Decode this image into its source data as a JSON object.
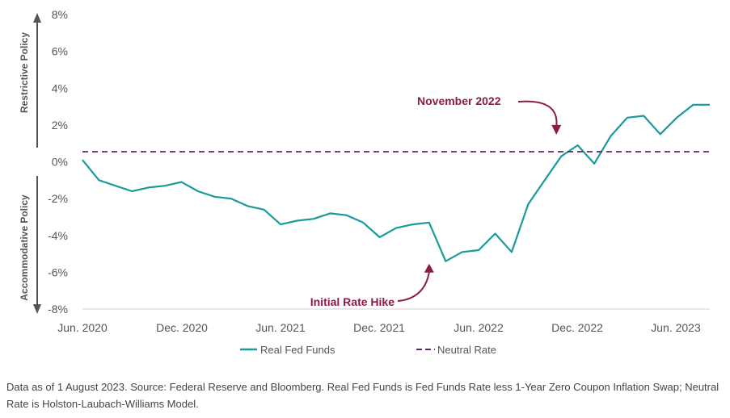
{
  "chart_data": {
    "type": "line",
    "x_ticks": [
      "Jun. 2020",
      "Dec. 2020",
      "Jun. 2021",
      "Dec. 2021",
      "Jun. 2022",
      "Dec. 2022",
      "Jun. 2023"
    ],
    "y_ticks": [
      "8%",
      "6%",
      "4%",
      "2%",
      "0%",
      "-2%",
      "-4%",
      "-6%",
      "-8%"
    ],
    "ylim": [
      -8,
      8
    ],
    "xlim": [
      "2020-06",
      "2023-08"
    ],
    "grid": false,
    "legend_position": "bottom",
    "side_labels": {
      "upper": "Restrictive Policy",
      "lower": "Accommodative Policy"
    },
    "annotations": [
      {
        "text": "November 2022",
        "x": "2022-11",
        "y": 1.3
      },
      {
        "text": "Initial Rate Hike",
        "x": "2022-03",
        "y": -5.4
      }
    ],
    "series": [
      {
        "name": "Real Fed Funds",
        "style": "solid",
        "color": "#1a9a9a",
        "x": [
          "2020-06",
          "2020-07",
          "2020-08",
          "2020-09",
          "2020-10",
          "2020-11",
          "2020-12",
          "2021-01",
          "2021-02",
          "2021-03",
          "2021-04",
          "2021-05",
          "2021-06",
          "2021-07",
          "2021-08",
          "2021-09",
          "2021-10",
          "2021-11",
          "2021-12",
          "2022-01",
          "2022-02",
          "2022-03",
          "2022-04",
          "2022-05",
          "2022-06",
          "2022-07",
          "2022-08",
          "2022-09",
          "2022-10",
          "2022-11",
          "2022-12",
          "2023-01",
          "2023-02",
          "2023-03",
          "2023-04",
          "2023-05",
          "2023-06",
          "2023-07",
          "2023-08"
        ],
        "values": [
          0.1,
          -1.0,
          -1.3,
          -1.6,
          -1.4,
          -1.3,
          -1.1,
          -1.6,
          -1.9,
          -2.0,
          -2.4,
          -2.6,
          -3.4,
          -3.2,
          -3.1,
          -2.8,
          -2.9,
          -3.3,
          -4.1,
          -3.6,
          -3.4,
          -3.3,
          -5.4,
          -4.9,
          -4.8,
          -3.9,
          -4.9,
          -2.3,
          -1.0,
          0.3,
          0.9,
          -0.1,
          1.4,
          2.4,
          2.5,
          1.5,
          2.4,
          3.1,
          3.1
        ]
      },
      {
        "name": "Neutral Rate",
        "style": "dashed",
        "color": "#5a2a66",
        "x": [
          "2020-06",
          "2023-08"
        ],
        "values": [
          0.55,
          0.55
        ]
      }
    ]
  },
  "footnote": "Data as of 1 August 2023. Source: Federal Reserve and Bloomberg. Real Fed Funds is Fed Funds Rate less 1-Year Zero Coupon Inflation Swap; Neutral Rate is Holston-Laubach-Williams Model."
}
